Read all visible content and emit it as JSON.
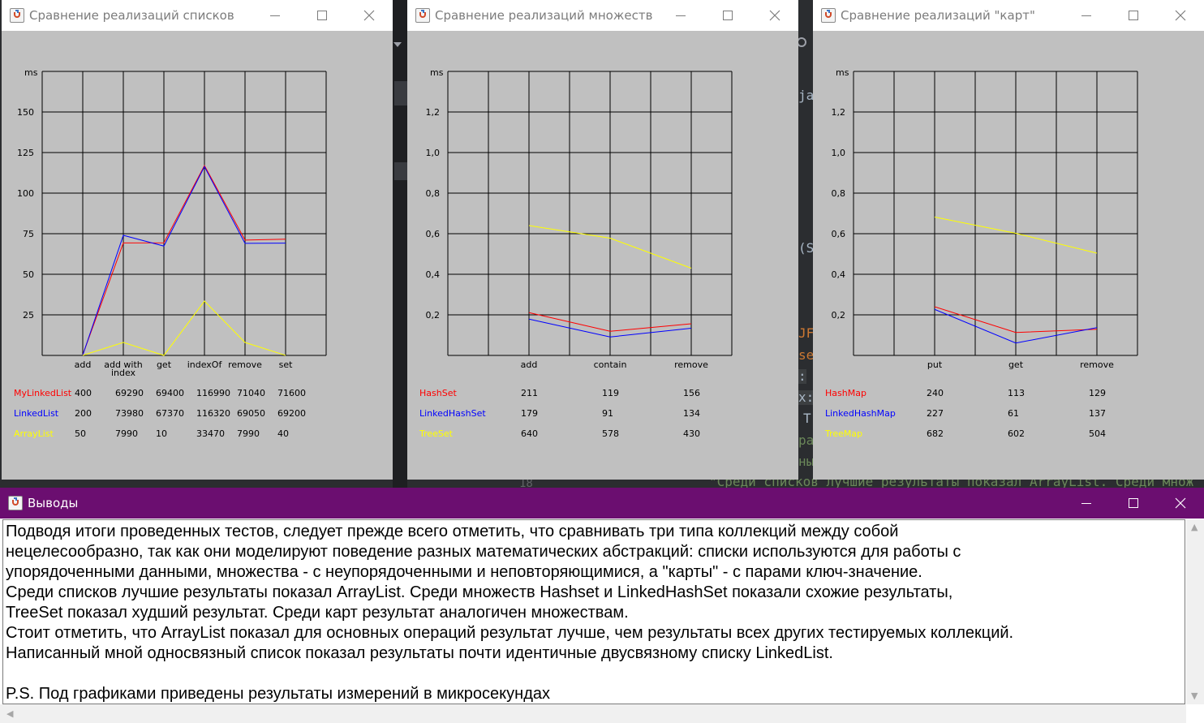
{
  "colors": {
    "red": "#ff0000",
    "blue": "#0000ff",
    "yellow": "#ffff00",
    "window_bg": "#c0c0c0",
    "conclusions_title_bg": "#6b0e70"
  },
  "ide_background": {
    "fragments": [
      {
        "text": "ja",
        "color": "#a9b7c6"
      },
      {
        "text": "(S",
        "color": "#a9b7c6"
      },
      {
        "text": "JF",
        "color": "#cc7832"
      },
      {
        "text": "se",
        "color": "#cc7832"
      },
      {
        "text": ":",
        "color": "#a9b7c6"
      },
      {
        "text": "x:",
        "color": "#a9b7c6"
      },
      {
        "text": "T",
        "color": "#a9b7c6"
      },
      {
        "text": "pa",
        "color": "#6a8759"
      },
      {
        "text": "ны",
        "color": "#6a8759"
      },
      {
        "text": "18",
        "color": "#606366"
      },
      {
        "text": "\"Среди списков лучшие результаты показал ArrayList. Среди множ",
        "color": "#6a8759"
      }
    ]
  },
  "windows": [
    {
      "title": "Сравнение реализаций списков",
      "chart_data": {
        "type": "line",
        "ylabel": "ms",
        "ylim": [
          0,
          175
        ],
        "yticks": [
          25,
          50,
          75,
          100,
          125,
          150
        ],
        "ytick_labels": [
          "25",
          "50",
          "75",
          "100",
          "125",
          "150"
        ],
        "categories": [
          "add",
          "add with index",
          "get",
          "indexOf",
          "remove",
          "set"
        ],
        "category_labels": [
          [
            "add"
          ],
          [
            "add with",
            "index"
          ],
          [
            "get"
          ],
          [
            "indexOf"
          ],
          [
            "remove"
          ],
          [
            "set"
          ]
        ],
        "series": [
          {
            "name": "MyLinkedList",
            "color": "#ff0000",
            "values": [
              0.4,
              69.29,
              69.4,
              116.99,
              71.04,
              71.6
            ],
            "labels": [
              "400",
              "69290",
              "69400",
              "116990",
              "71040",
              "71600"
            ]
          },
          {
            "name": "LinkedList",
            "color": "#0000ff",
            "values": [
              0.2,
              73.98,
              67.37,
              116.32,
              69.05,
              69.2
            ],
            "labels": [
              "200",
              "73980",
              "67370",
              "116320",
              "69050",
              "69200"
            ]
          },
          {
            "name": "ArrayList",
            "color": "#ffff00",
            "values": [
              0.05,
              7.99,
              0.01,
              33.47,
              7.99,
              0.04
            ],
            "labels": [
              "50",
              "7990",
              "10",
              "33470",
              "7990",
              "40"
            ]
          }
        ]
      }
    },
    {
      "title": "Сравнение реализаций множеств",
      "chart_data": {
        "type": "line",
        "ylabel": "ms",
        "ylim": [
          0,
          1.4
        ],
        "yticks": [
          0.2,
          0.4,
          0.6,
          0.8,
          1.0,
          1.2
        ],
        "ytick_labels": [
          "0,2",
          "0,4",
          "0,6",
          "0,8",
          "1,0",
          "1,2"
        ],
        "categories": [
          "add",
          "contain",
          "remove"
        ],
        "category_labels": [
          [
            "add"
          ],
          [
            "contain"
          ],
          [
            "remove"
          ]
        ],
        "series": [
          {
            "name": "HashSet",
            "color": "#ff0000",
            "values": [
              0.211,
              0.119,
              0.156
            ],
            "labels": [
              "211",
              "119",
              "156"
            ]
          },
          {
            "name": "LinkedHashSet",
            "color": "#0000ff",
            "values": [
              0.179,
              0.091,
              0.134
            ],
            "labels": [
              "179",
              "91",
              "134"
            ]
          },
          {
            "name": "TreeSet",
            "color": "#ffff00",
            "values": [
              0.64,
              0.578,
              0.43
            ],
            "labels": [
              "640",
              "578",
              "430"
            ]
          }
        ]
      }
    },
    {
      "title": "Сравнение реализаций \"карт\"",
      "chart_data": {
        "type": "line",
        "ylabel": "ms",
        "ylim": [
          0,
          1.4
        ],
        "yticks": [
          0.2,
          0.4,
          0.6,
          0.8,
          1.0,
          1.2
        ],
        "ytick_labels": [
          "0,2",
          "0,4",
          "0,6",
          "0,8",
          "1,0",
          "1,2"
        ],
        "categories": [
          "put",
          "get",
          "remove"
        ],
        "category_labels": [
          [
            "put"
          ],
          [
            "get"
          ],
          [
            "remove"
          ]
        ],
        "series": [
          {
            "name": "HashMap",
            "color": "#ff0000",
            "values": [
              0.24,
              0.113,
              0.129
            ],
            "labels": [
              "240",
              "113",
              "129"
            ]
          },
          {
            "name": "LinkedHashMap",
            "color": "#0000ff",
            "values": [
              0.227,
              0.061,
              0.137
            ],
            "labels": [
              "227",
              "61",
              "137"
            ]
          },
          {
            "name": "TreeMap",
            "color": "#ffff00",
            "values": [
              0.682,
              0.602,
              0.504
            ],
            "labels": [
              "682",
              "602",
              "504"
            ]
          }
        ]
      }
    }
  ],
  "conclusions": {
    "title": "Выводы",
    "lines": [
      "Подводя итоги проведенных тестов, следует прежде всего отметить, что сравнивать три типа коллекций между собой",
      "нецелесообразно, так как они моделируют поведение разных математических абстракций: списки используются для работы с",
      "упорядоченными данными, множества - с неупорядоченными и неповторяющимися, а \"карты\" - с парами ключ-значение.",
      "Среди списков лучшие результаты показал ArrayList. Среди множеств Hashset и LinkedHashSet показали схожие результаты,",
      "TreeSet показал худший результат. Среди карт результат аналогичен множествам.",
      "Стоит отметить, что ArrayList показал для основных операций результат лучше, чем результаты всех других тестируемых коллекций.",
      "Написанный мной односвязный список показал результаты почти идентичные двусвязному списку LinkedList.",
      "",
      "P.S. Под графиками приведены результаты измерений в микросекундах"
    ]
  },
  "icons": {
    "window_controls": [
      "minimize-icon",
      "maximize-icon",
      "close-icon"
    ],
    "app_icon": "java-icon"
  }
}
